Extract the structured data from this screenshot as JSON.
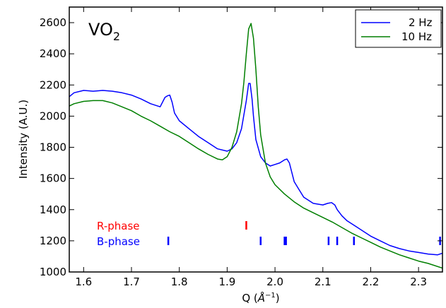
{
  "chart_data": {
    "type": "line",
    "title": "VO",
    "title_subscript": "2",
    "xlabel_main": "Q (",
    "xlabel_unit": "Å",
    "xlabel_sup": "−1",
    "xlabel_close": ")",
    "ylabel": "Intensity (A.U.)",
    "xlim": [
      1.57,
      2.35
    ],
    "ylim": [
      1000,
      2700
    ],
    "xticks": [
      1.6,
      1.7,
      1.8,
      1.9,
      2.0,
      2.1,
      2.2,
      2.3
    ],
    "xtick_labels": [
      "1.6",
      "1.7",
      "1.8",
      "1.9",
      "2.0",
      "2.1",
      "2.2",
      "2.3"
    ],
    "yticks": [
      1000,
      1200,
      1400,
      1600,
      1800,
      2000,
      2200,
      2400,
      2600
    ],
    "ytick_labels": [
      "1000",
      "1200",
      "1400",
      "1600",
      "1800",
      "2000",
      "2200",
      "2400",
      "2600"
    ],
    "grid": false,
    "legend_position": "top-right",
    "series": [
      {
        "name": "2 Hz",
        "color": "#0000ff",
        "x": [
          1.57,
          1.58,
          1.6,
          1.62,
          1.64,
          1.66,
          1.68,
          1.7,
          1.72,
          1.74,
          1.76,
          1.77,
          1.775,
          1.78,
          1.785,
          1.79,
          1.8,
          1.82,
          1.84,
          1.86,
          1.88,
          1.9,
          1.91,
          1.92,
          1.93,
          1.94,
          1.945,
          1.948,
          1.952,
          1.955,
          1.96,
          1.97,
          1.98,
          1.99,
          2.0,
          2.01,
          2.02,
          2.025,
          2.03,
          2.035,
          2.04,
          2.05,
          2.06,
          2.08,
          2.1,
          2.11,
          2.118,
          2.125,
          2.13,
          2.14,
          2.15,
          2.17,
          2.2,
          2.22,
          2.24,
          2.26,
          2.28,
          2.3,
          2.32,
          2.34,
          2.35
        ],
        "y": [
          2125,
          2150,
          2165,
          2160,
          2165,
          2160,
          2150,
          2135,
          2110,
          2080,
          2060,
          2120,
          2130,
          2135,
          2090,
          2020,
          1970,
          1920,
          1870,
          1830,
          1790,
          1775,
          1790,
          1830,
          1920,
          2100,
          2210,
          2210,
          2110,
          2000,
          1850,
          1740,
          1700,
          1680,
          1690,
          1700,
          1720,
          1725,
          1700,
          1640,
          1580,
          1530,
          1480,
          1440,
          1430,
          1440,
          1445,
          1430,
          1400,
          1360,
          1330,
          1290,
          1230,
          1200,
          1170,
          1150,
          1135,
          1125,
          1115,
          1110,
          1120
        ]
      },
      {
        "name": "10 Hz",
        "color": "#007f00",
        "x": [
          1.57,
          1.58,
          1.6,
          1.62,
          1.64,
          1.66,
          1.68,
          1.7,
          1.72,
          1.74,
          1.76,
          1.78,
          1.8,
          1.82,
          1.84,
          1.86,
          1.88,
          1.89,
          1.9,
          1.91,
          1.92,
          1.93,
          1.935,
          1.94,
          1.945,
          1.95,
          1.955,
          1.96,
          1.965,
          1.97,
          1.98,
          1.99,
          2.0,
          2.02,
          2.04,
          2.06,
          2.08,
          2.1,
          2.12,
          2.14,
          2.16,
          2.18,
          2.2,
          2.22,
          2.24,
          2.26,
          2.28,
          2.3,
          2.32,
          2.35
        ],
        "y": [
          2065,
          2080,
          2095,
          2100,
          2100,
          2085,
          2060,
          2035,
          2000,
          1970,
          1935,
          1900,
          1870,
          1830,
          1790,
          1755,
          1725,
          1720,
          1740,
          1800,
          1900,
          2080,
          2220,
          2400,
          2560,
          2595,
          2500,
          2300,
          2060,
          1880,
          1700,
          1610,
          1560,
          1500,
          1450,
          1410,
          1380,
          1350,
          1320,
          1285,
          1250,
          1220,
          1190,
          1160,
          1135,
          1110,
          1090,
          1070,
          1055,
          1025
        ]
      }
    ],
    "phase_markers": [
      {
        "label": "R-phase",
        "color": "#ff0000",
        "y": 1190,
        "positions": [
          1.94
        ]
      },
      {
        "label": "B-phase",
        "color": "#0000ff",
        "y": 1190,
        "positions": [
          1.777,
          1.97,
          2.02,
          2.023,
          2.112,
          2.13,
          2.165,
          2.345
        ]
      }
    ]
  }
}
